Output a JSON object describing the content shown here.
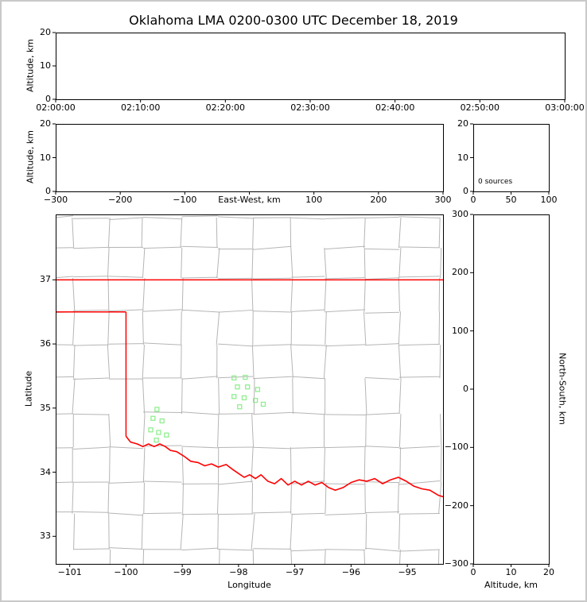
{
  "title": "Oklahoma LMA 0200-0300 UTC December 18, 2019",
  "colors": {
    "state_border": "#ff0000",
    "county_line": "#b5b5b5",
    "station_marker": "#90ee90",
    "panel_border": "#000000",
    "frame": "#c9c9c9"
  },
  "chart_data": [
    {
      "id": "time_height",
      "type": "scatter",
      "xlabel": "",
      "ylabel": "Altitude, km",
      "x_ticks": [
        "02:00:00",
        "02:10:00",
        "02:20:00",
        "02:30:00",
        "02:40:00",
        "02:50:00",
        "03:00:00"
      ],
      "y_ticks": [
        0,
        10,
        20
      ],
      "xlim": [
        "02:00:00",
        "03:00:00"
      ],
      "ylim": [
        0,
        20
      ],
      "points": []
    },
    {
      "id": "ew_height",
      "type": "scatter",
      "xlabel": "East-West, km",
      "ylabel": "Altitude, km",
      "x_ticks": [
        -300,
        -200,
        -100,
        0,
        100,
        200,
        300
      ],
      "y_ticks": [
        0,
        10,
        20
      ],
      "xlim": [
        -300,
        300
      ],
      "ylim": [
        0,
        20
      ],
      "points": []
    },
    {
      "id": "source_histogram",
      "type": "line",
      "annotation": "0 sources",
      "x_ticks": [
        0,
        50,
        100
      ],
      "y_ticks": [
        0,
        10,
        20
      ],
      "xlim": [
        0,
        100
      ],
      "ylim": [
        0,
        20
      ],
      "points": []
    },
    {
      "id": "plan_map",
      "type": "scatter",
      "xlabel": "Longitude",
      "ylabel": "Latitude",
      "x_ticks": [
        -101,
        -100,
        -99,
        -98,
        -97,
        -96,
        -95
      ],
      "y_ticks": [
        33,
        34,
        35,
        36,
        37
      ],
      "xlim": [
        -101.25,
        -94.365
      ],
      "ylim": [
        32.57,
        38.02
      ],
      "stations": [
        [
          -98.08,
          35.47
        ],
        [
          -97.88,
          35.48
        ],
        [
          -98.02,
          35.33
        ],
        [
          -97.84,
          35.33
        ],
        [
          -97.66,
          35.29
        ],
        [
          -98.08,
          35.18
        ],
        [
          -97.9,
          35.16
        ],
        [
          -97.7,
          35.12
        ],
        [
          -97.98,
          35.02
        ],
        [
          -97.56,
          35.06
        ],
        [
          -99.45,
          34.98
        ],
        [
          -99.52,
          34.84
        ],
        [
          -99.36,
          34.8
        ],
        [
          -99.56,
          34.66
        ],
        [
          -99.42,
          34.62
        ],
        [
          -99.28,
          34.58
        ],
        [
          -99.46,
          34.5
        ]
      ],
      "state_boundary": {
        "north_border_lat": 37,
        "panhandle_lat": 36.5,
        "west_lon": -100,
        "west_lat_range": [
          34.56,
          36.5
        ],
        "red_river": [
          [
            -100.0,
            34.56
          ],
          [
            -99.92,
            34.47
          ],
          [
            -99.8,
            34.44
          ],
          [
            -99.7,
            34.4
          ],
          [
            -99.6,
            34.44
          ],
          [
            -99.5,
            34.4
          ],
          [
            -99.4,
            34.44
          ],
          [
            -99.3,
            34.4
          ],
          [
            -99.21,
            34.34
          ],
          [
            -99.1,
            34.32
          ],
          [
            -98.97,
            34.25
          ],
          [
            -98.85,
            34.17
          ],
          [
            -98.72,
            34.15
          ],
          [
            -98.6,
            34.1
          ],
          [
            -98.48,
            34.13
          ],
          [
            -98.36,
            34.08
          ],
          [
            -98.22,
            34.12
          ],
          [
            -98.1,
            34.04
          ],
          [
            -98.0,
            33.98
          ],
          [
            -97.9,
            33.92
          ],
          [
            -97.8,
            33.96
          ],
          [
            -97.7,
            33.9
          ],
          [
            -97.6,
            33.96
          ],
          [
            -97.48,
            33.86
          ],
          [
            -97.36,
            33.82
          ],
          [
            -97.24,
            33.9
          ],
          [
            -97.12,
            33.8
          ],
          [
            -97.0,
            33.86
          ],
          [
            -96.88,
            33.8
          ],
          [
            -96.76,
            33.86
          ],
          [
            -96.64,
            33.8
          ],
          [
            -96.52,
            33.84
          ],
          [
            -96.4,
            33.76
          ],
          [
            -96.28,
            33.72
          ],
          [
            -96.14,
            33.76
          ],
          [
            -96.0,
            33.84
          ],
          [
            -95.86,
            33.88
          ],
          [
            -95.72,
            33.86
          ],
          [
            -95.58,
            33.9
          ],
          [
            -95.44,
            33.82
          ],
          [
            -95.3,
            33.88
          ],
          [
            -95.16,
            33.92
          ],
          [
            -95.02,
            33.86
          ],
          [
            -94.88,
            33.78
          ],
          [
            -94.74,
            33.74
          ],
          [
            -94.6,
            33.72
          ],
          [
            -94.45,
            33.64
          ],
          [
            -94.3,
            33.6
          ]
        ]
      }
    },
    {
      "id": "ns_height",
      "type": "scatter",
      "xlabel": "Altitude, km",
      "ylabel_right": "North-South, km",
      "x_ticks": [
        0,
        10,
        20
      ],
      "y_ticks": [
        -300,
        -200,
        -100,
        0,
        100,
        200,
        300
      ],
      "xlim": [
        0,
        20
      ],
      "ylim": [
        -300,
        300
      ],
      "points": []
    }
  ]
}
